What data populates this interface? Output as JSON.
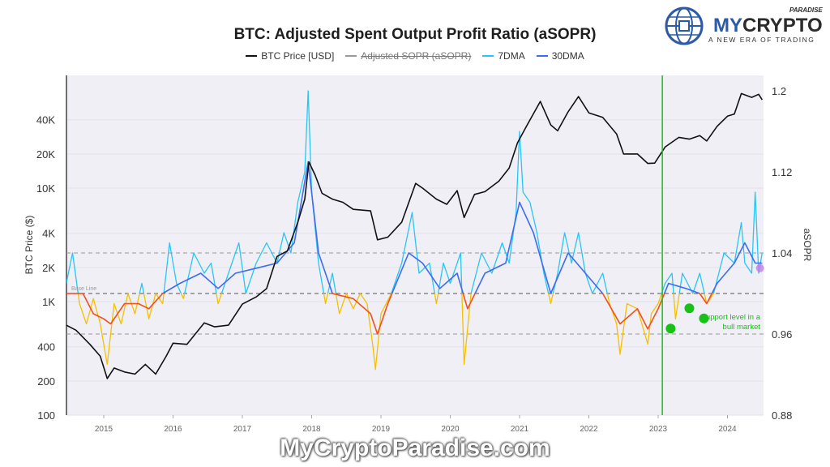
{
  "logo": {
    "brand_my": "MY",
    "brand_crypto": "CRYPTO",
    "superscript": "PARADISE",
    "tagline": "A NEW ERA OF TRADING"
  },
  "watermark": "MyCryptoParadise.com",
  "chart_data": {
    "type": "line",
    "title": "BTC: Adjusted Spent Output Profit Ratio (aSOPR)",
    "legend": [
      "BTC Price [USD]",
      "Adjusted SOPR (aSOPR)",
      "7DMA",
      "30DMA"
    ],
    "legend_placement": "top-center",
    "ylabel_left": "BTC Price ($)",
    "ylabel_right": "aSOPR",
    "y_left_scale": "log",
    "y_left_range": [
      100,
      60000
    ],
    "y_left_ticks": [
      {
        "v": 100,
        "l": "100"
      },
      {
        "v": 200,
        "l": "200"
      },
      {
        "v": 400,
        "l": "400"
      },
      {
        "v": 1000,
        "l": "1K"
      },
      {
        "v": 2000,
        "l": "2K"
      },
      {
        "v": 4000,
        "l": "4K"
      },
      {
        "v": 10000,
        "l": "10K"
      },
      {
        "v": 20000,
        "l": "20K"
      },
      {
        "v": 40000,
        "l": "40K"
      }
    ],
    "y_right_range": [
      0.88,
      1.2
    ],
    "y_right_ticks": [
      "0.88",
      "0.96",
      "1.04",
      "1.12",
      "1.2"
    ],
    "x_range": [
      2014.46,
      2024.55
    ],
    "x_ticks": [
      "2015",
      "2016",
      "2017",
      "2018",
      "2019",
      "2020",
      "2021",
      "2022",
      "2023",
      "2024"
    ],
    "grid": true,
    "reference_lines": [
      {
        "value": 1.0,
        "label": "Base Line"
      },
      {
        "value": 1.04
      },
      {
        "value": 0.96
      }
    ],
    "vertical_marker_year": 2023.06,
    "colors": {
      "price": "#111111",
      "above_7dma": "#29c6f5",
      "above_30dma": "#3d6cf0",
      "below_7dma": "#f5c000",
      "below_30dma": "#f0501e",
      "marker": "#17c117",
      "highlight": "#c77dea",
      "background": "#efeff5"
    },
    "annotation": {
      "text_line1": "Support level in a",
      "text_line2": "bull market",
      "points": [
        [
          2023.18,
          0.975
        ],
        [
          2023.45,
          0.995
        ],
        [
          2023.66,
          0.985
        ]
      ]
    },
    "highlight_point": [
      2024.47,
      1.025
    ],
    "btc_price": [
      [
        2014.46,
        620
      ],
      [
        2014.6,
        560
      ],
      [
        2014.8,
        420
      ],
      [
        2014.95,
        330
      ],
      [
        2015.05,
        210
      ],
      [
        2015.15,
        260
      ],
      [
        2015.3,
        240
      ],
      [
        2015.45,
        230
      ],
      [
        2015.6,
        280
      ],
      [
        2015.75,
        230
      ],
      [
        2015.9,
        330
      ],
      [
        2016.0,
        430
      ],
      [
        2016.2,
        420
      ],
      [
        2016.45,
        650
      ],
      [
        2016.6,
        600
      ],
      [
        2016.8,
        620
      ],
      [
        2017.0,
        950
      ],
      [
        2017.2,
        1100
      ],
      [
        2017.35,
        1300
      ],
      [
        2017.5,
        2500
      ],
      [
        2017.65,
        2800
      ],
      [
        2017.8,
        5000
      ],
      [
        2017.9,
        8000
      ],
      [
        2017.96,
        17000
      ],
      [
        2018.05,
        13000
      ],
      [
        2018.15,
        9000
      ],
      [
        2018.3,
        8000
      ],
      [
        2018.45,
        7500
      ],
      [
        2018.6,
        6500
      ],
      [
        2018.85,
        6300
      ],
      [
        2018.95,
        3500
      ],
      [
        2019.1,
        3700
      ],
      [
        2019.3,
        5000
      ],
      [
        2019.5,
        11000
      ],
      [
        2019.6,
        10000
      ],
      [
        2019.8,
        8000
      ],
      [
        2019.95,
        7200
      ],
      [
        2020.1,
        9500
      ],
      [
        2020.2,
        5500
      ],
      [
        2020.35,
        8800
      ],
      [
        2020.5,
        9300
      ],
      [
        2020.7,
        11500
      ],
      [
        2020.85,
        15000
      ],
      [
        2020.97,
        25000
      ],
      [
        2021.1,
        35000
      ],
      [
        2021.3,
        58000
      ],
      [
        2021.45,
        36000
      ],
      [
        2021.55,
        32000
      ],
      [
        2021.7,
        47000
      ],
      [
        2021.85,
        64000
      ],
      [
        2022.0,
        46000
      ],
      [
        2022.2,
        42000
      ],
      [
        2022.4,
        30000
      ],
      [
        2022.5,
        20000
      ],
      [
        2022.7,
        20000
      ],
      [
        2022.85,
        16500
      ],
      [
        2022.95,
        16600
      ],
      [
        2023.1,
        23000
      ],
      [
        2023.3,
        28000
      ],
      [
        2023.45,
        27000
      ],
      [
        2023.6,
        29000
      ],
      [
        2023.7,
        26000
      ],
      [
        2023.85,
        35000
      ],
      [
        2024.0,
        43000
      ],
      [
        2024.1,
        45000
      ],
      [
        2024.2,
        68000
      ],
      [
        2024.35,
        63000
      ],
      [
        2024.45,
        67000
      ],
      [
        2024.5,
        60000
      ]
    ],
    "asopr_7dma": [
      [
        2014.46,
        1.01
      ],
      [
        2014.55,
        1.04
      ],
      [
        2014.65,
        0.99
      ],
      [
        2014.75,
        0.97
      ],
      [
        2014.85,
        0.995
      ],
      [
        2014.95,
        0.97
      ],
      [
        2015.05,
        0.93
      ],
      [
        2015.15,
        0.99
      ],
      [
        2015.25,
        0.97
      ],
      [
        2015.35,
        1.0
      ],
      [
        2015.45,
        0.98
      ],
      [
        2015.55,
        1.01
      ],
      [
        2015.65,
        0.975
      ],
      [
        2015.75,
        1.0
      ],
      [
        2015.85,
        0.99
      ],
      [
        2015.95,
        1.05
      ],
      [
        2016.05,
        1.01
      ],
      [
        2016.15,
        0.995
      ],
      [
        2016.3,
        1.04
      ],
      [
        2016.45,
        1.02
      ],
      [
        2016.55,
        1.03
      ],
      [
        2016.65,
        0.99
      ],
      [
        2016.8,
        1.02
      ],
      [
        2016.95,
        1.05
      ],
      [
        2017.05,
        1.0
      ],
      [
        2017.2,
        1.03
      ],
      [
        2017.35,
        1.05
      ],
      [
        2017.5,
        1.03
      ],
      [
        2017.6,
        1.06
      ],
      [
        2017.7,
        1.04
      ],
      [
        2017.8,
        1.09
      ],
      [
        2017.9,
        1.12
      ],
      [
        2017.95,
        1.2
      ],
      [
        2018.0,
        1.1
      ],
      [
        2018.1,
        1.03
      ],
      [
        2018.2,
        0.99
      ],
      [
        2018.3,
        1.02
      ],
      [
        2018.4,
        0.98
      ],
      [
        2018.5,
        1.0
      ],
      [
        2018.6,
        0.985
      ],
      [
        2018.7,
        1.0
      ],
      [
        2018.8,
        0.99
      ],
      [
        2018.88,
        0.95
      ],
      [
        2018.92,
        0.925
      ],
      [
        2019.0,
        0.98
      ],
      [
        2019.15,
        1.0
      ],
      [
        2019.3,
        1.03
      ],
      [
        2019.45,
        1.08
      ],
      [
        2019.55,
        1.02
      ],
      [
        2019.7,
        1.03
      ],
      [
        2019.8,
        0.99
      ],
      [
        2019.9,
        1.03
      ],
      [
        2020.0,
        1.01
      ],
      [
        2020.15,
        1.04
      ],
      [
        2020.2,
        0.93
      ],
      [
        2020.3,
        1.0
      ],
      [
        2020.45,
        1.04
      ],
      [
        2020.6,
        1.02
      ],
      [
        2020.75,
        1.05
      ],
      [
        2020.85,
        1.03
      ],
      [
        2020.95,
        1.08
      ],
      [
        2021.0,
        1.16
      ],
      [
        2021.05,
        1.1
      ],
      [
        2021.15,
        1.09
      ],
      [
        2021.25,
        1.06
      ],
      [
        2021.35,
        1.02
      ],
      [
        2021.45,
        0.99
      ],
      [
        2021.55,
        1.02
      ],
      [
        2021.65,
        1.06
      ],
      [
        2021.75,
        1.03
      ],
      [
        2021.85,
        1.06
      ],
      [
        2021.95,
        1.02
      ],
      [
        2022.05,
        1.0
      ],
      [
        2022.2,
        1.02
      ],
      [
        2022.3,
        0.99
      ],
      [
        2022.4,
        0.97
      ],
      [
        2022.45,
        0.94
      ],
      [
        2022.55,
        0.99
      ],
      [
        2022.7,
        0.985
      ],
      [
        2022.85,
        0.95
      ],
      [
        2022.9,
        0.98
      ],
      [
        2023.0,
        0.99
      ],
      [
        2023.1,
        1.01
      ],
      [
        2023.2,
        1.02
      ],
      [
        2023.25,
        0.975
      ],
      [
        2023.35,
        1.02
      ],
      [
        2023.5,
        1.0
      ],
      [
        2023.6,
        1.02
      ],
      [
        2023.7,
        0.99
      ],
      [
        2023.8,
        1.0
      ],
      [
        2023.95,
        1.04
      ],
      [
        2024.1,
        1.03
      ],
      [
        2024.2,
        1.07
      ],
      [
        2024.25,
        1.03
      ],
      [
        2024.35,
        1.02
      ],
      [
        2024.4,
        1.1
      ],
      [
        2024.45,
        1.02
      ],
      [
        2024.5,
        1.04
      ]
    ],
    "asopr_30dma": [
      [
        2014.46,
        1.0
      ],
      [
        2014.7,
        1.0
      ],
      [
        2014.85,
        0.98
      ],
      [
        2015.0,
        0.975
      ],
      [
        2015.1,
        0.97
      ],
      [
        2015.3,
        0.99
      ],
      [
        2015.5,
        0.99
      ],
      [
        2015.65,
        0.985
      ],
      [
        2015.85,
        1.0
      ],
      [
        2016.1,
        1.01
      ],
      [
        2016.4,
        1.02
      ],
      [
        2016.65,
        1.005
      ],
      [
        2016.9,
        1.02
      ],
      [
        2017.2,
        1.025
      ],
      [
        2017.5,
        1.03
      ],
      [
        2017.75,
        1.05
      ],
      [
        2017.95,
        1.13
      ],
      [
        2018.1,
        1.04
      ],
      [
        2018.3,
        1.0
      ],
      [
        2018.6,
        0.995
      ],
      [
        2018.85,
        0.98
      ],
      [
        2018.95,
        0.96
      ],
      [
        2019.1,
        0.99
      ],
      [
        2019.4,
        1.04
      ],
      [
        2019.6,
        1.03
      ],
      [
        2019.85,
        1.005
      ],
      [
        2020.1,
        1.02
      ],
      [
        2020.25,
        0.985
      ],
      [
        2020.5,
        1.02
      ],
      [
        2020.8,
        1.03
      ],
      [
        2021.0,
        1.09
      ],
      [
        2021.2,
        1.06
      ],
      [
        2021.45,
        1.0
      ],
      [
        2021.7,
        1.04
      ],
      [
        2021.95,
        1.02
      ],
      [
        2022.2,
        1.0
      ],
      [
        2022.45,
        0.97
      ],
      [
        2022.7,
        0.985
      ],
      [
        2022.85,
        0.965
      ],
      [
        2023.0,
        0.985
      ],
      [
        2023.15,
        1.01
      ],
      [
        2023.4,
        1.005
      ],
      [
        2023.6,
        1.0
      ],
      [
        2023.7,
        0.99
      ],
      [
        2023.85,
        1.01
      ],
      [
        2024.1,
        1.03
      ],
      [
        2024.25,
        1.05
      ],
      [
        2024.4,
        1.03
      ],
      [
        2024.5,
        1.03
      ]
    ]
  }
}
